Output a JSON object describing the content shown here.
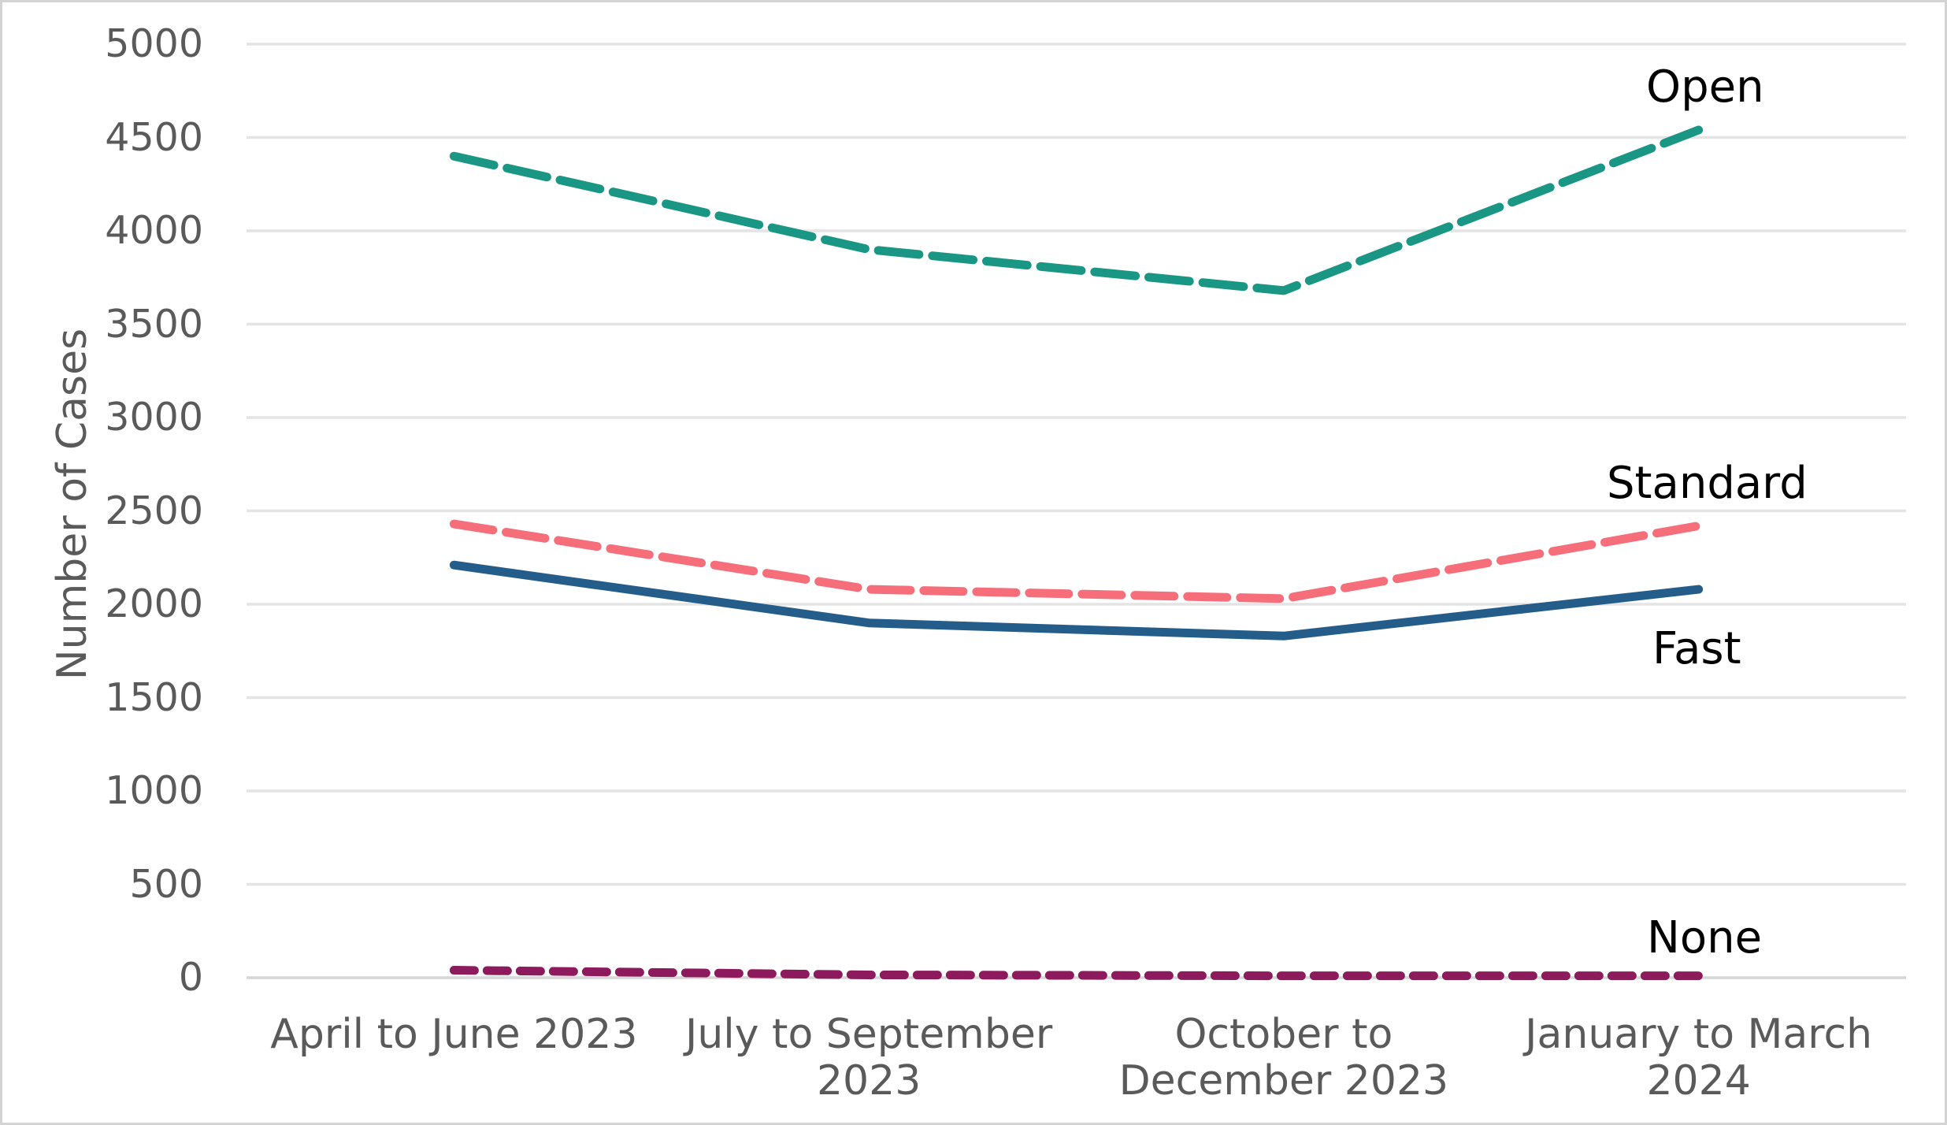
{
  "chart_data": {
    "type": "line",
    "title": "",
    "xlabel": "",
    "ylabel": "Number of Cases",
    "ylim": [
      0,
      5000
    ],
    "ytick_step": 500,
    "yticks": [
      5000,
      4500,
      4000,
      3500,
      3000,
      2500,
      2000,
      1500,
      1000,
      500,
      0
    ],
    "categories": [
      "April to June 2023",
      "July to September 2023",
      "October to December 2023",
      "January to March 2024"
    ],
    "categories_display": [
      "April to June 2023",
      "July to September\n2023",
      "October to\nDecember 2023",
      "January to March\n2024"
    ],
    "grid": true,
    "legend_position": "labels at line ends (right side)",
    "series": [
      {
        "name": "Open",
        "values": [
          4400,
          3900,
          3680,
          4540
        ],
        "color": "#1a9685",
        "style": "dashed",
        "dash": [
          52,
          17
        ]
      },
      {
        "name": "Standard",
        "values": [
          2430,
          2080,
          2030,
          2420
        ],
        "color": "#f56e79",
        "style": "dashed",
        "dash": [
          50,
          17
        ]
      },
      {
        "name": "Fast",
        "values": [
          2210,
          1900,
          1830,
          2080
        ],
        "color": "#255d8a",
        "style": "solid",
        "dash": null
      },
      {
        "name": "None",
        "values": [
          40,
          15,
          10,
          10
        ],
        "color": "#8c1a5c",
        "style": "dashed",
        "dash": [
          26,
          16
        ]
      }
    ],
    "colors": {
      "grid": "#e4e4e4",
      "axis_line": "#d6d6d6",
      "tick_text": "#5a5a5a",
      "series_label_text": "#000000",
      "background": "#ffffff",
      "border": "#d4d4d4"
    }
  }
}
